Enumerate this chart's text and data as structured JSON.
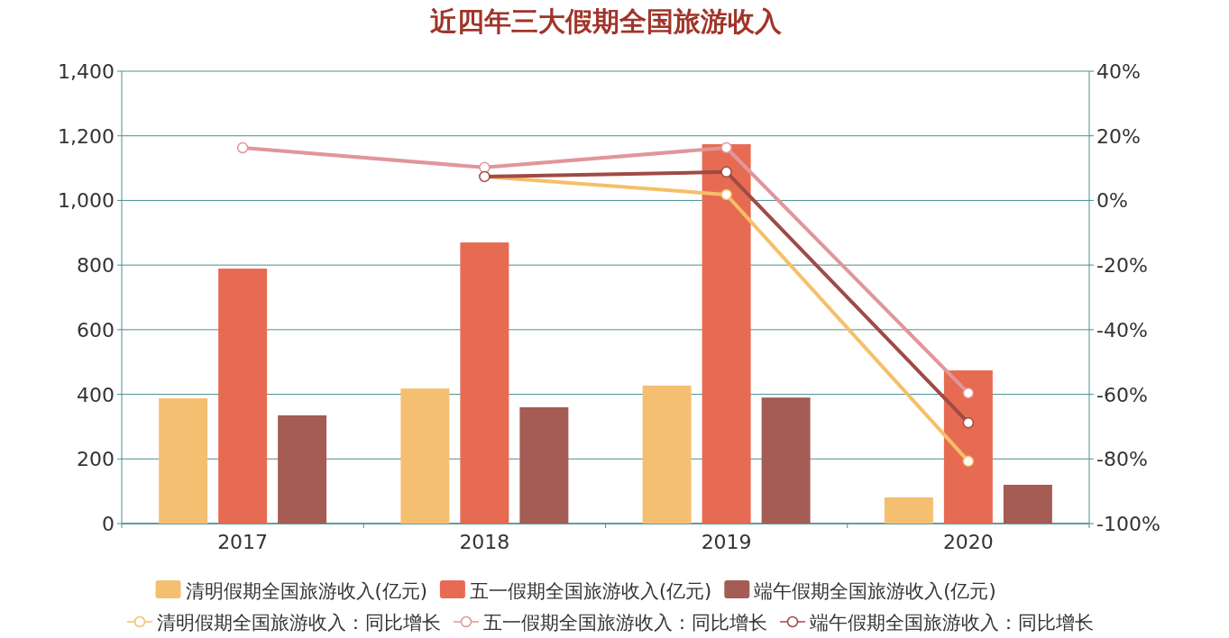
{
  "chart_data": {
    "type": "bar",
    "title": "近四年三大假期全国旅游收入",
    "categories": [
      "2017",
      "2018",
      "2019",
      "2020"
    ],
    "series": [
      {
        "name": "清明假期全国旅游收入(亿元)",
        "color": "#f5bf72",
        "values": [
          388,
          418,
          427,
          81
        ]
      },
      {
        "name": "五一假期全国旅游收入(亿元)",
        "color": "#e76b52",
        "values": [
          789,
          870,
          1174,
          474
        ]
      },
      {
        "name": "端午假期全国旅游收入(亿元)",
        "color": "#a45c55",
        "values": [
          335,
          360,
          390,
          120
        ]
      },
      {
        "name": "清明假期全国旅游收入：同比增长",
        "type": "line",
        "axis": "y2",
        "color": "#f5bf6a",
        "values": [
          null,
          7.4,
          1.8,
          -80.7
        ]
      },
      {
        "name": "五一假期全国旅游收入：同比增长",
        "type": "line",
        "axis": "y2",
        "color": "#e0969a",
        "values": [
          16.3,
          10.2,
          16.3,
          -59.6
        ]
      },
      {
        "name": "端午假期全国旅游收入：同比增长",
        "type": "line",
        "axis": "y2",
        "color": "#a04a45",
        "values": [
          null,
          7.4,
          8.8,
          -68.8
        ]
      }
    ],
    "ylim": [
      0,
      1400
    ],
    "yticks": [
      0,
      200,
      400,
      600,
      800,
      {
        "value": 1000,
        "label": "1,000"
      },
      {
        "value": 1200,
        "label": "1,200"
      },
      {
        "value": 1400,
        "label": "1,400"
      }
    ],
    "y2lim": [
      -100,
      40
    ],
    "y2ticks": [
      {
        "value": -100,
        "label": "-100%"
      },
      {
        "value": -80,
        "label": "-80%"
      },
      {
        "value": -60,
        "label": "-60%"
      },
      {
        "value": -40,
        "label": "-40%"
      },
      {
        "value": -20,
        "label": "-20%"
      },
      {
        "value": 0,
        "label": "0%"
      },
      {
        "value": 20,
        "label": "20%"
      },
      {
        "value": 40,
        "label": "40%"
      }
    ],
    "grid": "y",
    "legend": "bottom",
    "marker": "circle"
  }
}
